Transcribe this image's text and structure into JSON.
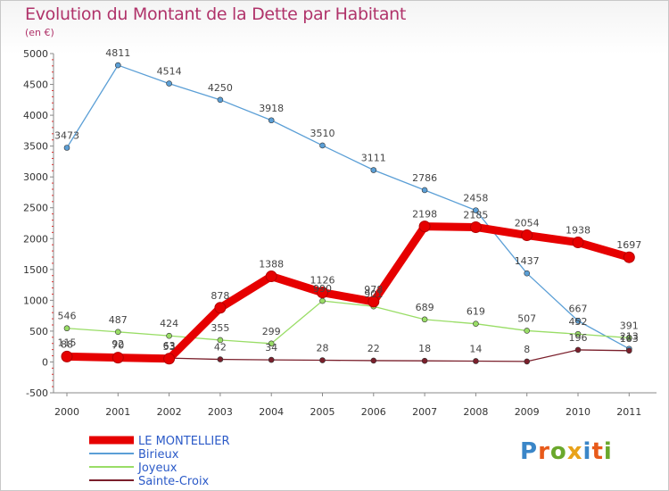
{
  "title": "Evolution du Montant de la Dette par Habitant",
  "subtitle": "(en €)",
  "logo": "Proxiti",
  "chart_data": {
    "type": "line",
    "categories": [
      "2000",
      "2001",
      "2002",
      "2003",
      "2004",
      "2005",
      "2006",
      "2007",
      "2008",
      "2009",
      "2010",
      "2011"
    ],
    "ylim": [
      -500,
      5000
    ],
    "yticks": [
      -500,
      0,
      500,
      1000,
      1500,
      2000,
      2500,
      3000,
      3500,
      4000,
      4500,
      5000
    ],
    "grid": false,
    "legend_position": "bottom-left",
    "series": [
      {
        "name": "LE MONTELLIER",
        "color": "#e60000",
        "values": [
          88,
          70,
          53,
          878,
          1388,
          1126,
          978,
          2198,
          2185,
          2054,
          1938,
          1697
        ],
        "labels": [
          "88",
          "70",
          "53",
          "878",
          "1388",
          "1126",
          "978",
          "2198",
          "2185",
          "2054",
          "1938",
          "1697"
        ]
      },
      {
        "name": "Birieux",
        "color": "#5b9fd6",
        "values": [
          3473,
          4811,
          4514,
          4250,
          3918,
          3510,
          3111,
          2786,
          2458,
          1437,
          667,
          213
        ],
        "labels": [
          "3473",
          "4811",
          "4514",
          "4250",
          "3918",
          "3510",
          "3111",
          "2786",
          "2458",
          "1437",
          "667",
          "213"
        ]
      },
      {
        "name": "Joyeux",
        "color": "#99dd66",
        "values": [
          546,
          487,
          424,
          355,
          299,
          990,
          901,
          689,
          619,
          507,
          452,
          391
        ],
        "labels": [
          "546",
          "487",
          "424",
          "355",
          "299",
          "990",
          "901",
          "689",
          "619",
          "507",
          "452",
          "391"
        ]
      },
      {
        "name": "Sainte-Croix",
        "color": "#7a1f2b",
        "values": [
          115,
          92,
          63,
          42,
          34,
          28,
          22,
          18,
          14,
          8,
          196,
          183
        ],
        "labels": [
          "115",
          "92",
          "63",
          "42",
          "34",
          "28",
          "22",
          "18",
          "14",
          "8",
          "196",
          "183"
        ]
      }
    ]
  }
}
